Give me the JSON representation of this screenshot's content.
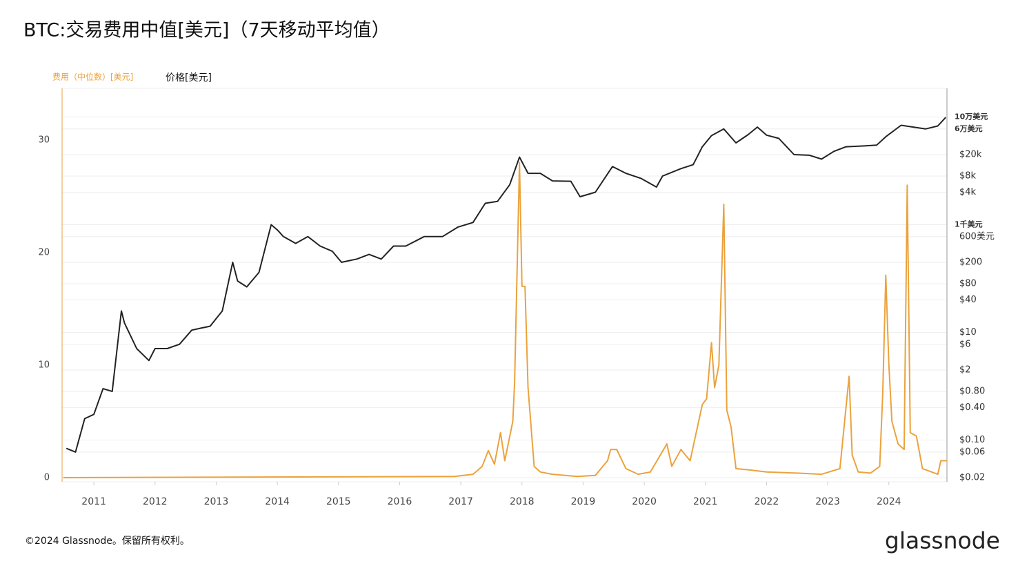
{
  "chart_data": {
    "type": "line",
    "title": "BTC:交易费用中值[美元]（7天移动平均值）",
    "footer": "©2024 Glassnode。保留所有权利。",
    "logo": "glassnode",
    "xlim": [
      2010.48,
      2024.95
    ],
    "xticks": [
      2011,
      2012,
      2013,
      2014,
      2015,
      2016,
      2017,
      2018,
      2019,
      2020,
      2021,
      2022,
      2023,
      2024
    ],
    "ylim": [
      -0.37,
      34.6
    ],
    "yticks": [
      0,
      10,
      20,
      30
    ],
    "y2lim": [
      0.0168,
      340000
    ],
    "y2log": true,
    "y2ticks": [
      {
        "value": 0.02,
        "label": "$0.02"
      },
      {
        "value": 0.06,
        "label": "$0.06"
      },
      {
        "value": 0.1,
        "label": "$0.10"
      },
      {
        "value": 0.4,
        "label": "$0.40"
      },
      {
        "value": 0.8,
        "label": "$0.80"
      },
      {
        "value": 2,
        "label": "$2"
      },
      {
        "value": 6,
        "label": "$6"
      },
      {
        "value": 10,
        "label": "$10"
      },
      {
        "value": 40,
        "label": "$40"
      },
      {
        "value": 80,
        "label": "$80"
      },
      {
        "value": 200,
        "label": "$200"
      },
      {
        "value": 600,
        "label": "600美元"
      },
      {
        "value": 1000,
        "label": "1千美元"
      },
      {
        "value": 4000,
        "label": "$4k"
      },
      {
        "value": 8000,
        "label": "$8k"
      },
      {
        "value": 20000,
        "label": "$20k"
      },
      {
        "value": 60000,
        "label": "6万美元"
      },
      {
        "value": 100000,
        "label": "10万美元"
      }
    ],
    "grid": true,
    "series": [
      {
        "name": "费用（中位数）[美元]",
        "color": "#eba23c",
        "axis": "y",
        "x": [
          2010.5,
          2016.9,
          2017.2,
          2017.35,
          2017.45,
          2017.55,
          2017.65,
          2017.72,
          2017.85,
          2017.88,
          2017.96,
          2018.0,
          2018.05,
          2018.1,
          2018.2,
          2018.3,
          2018.5,
          2018.9,
          2019.2,
          2019.4,
          2019.45,
          2019.55,
          2019.7,
          2019.9,
          2020.1,
          2020.37,
          2020.45,
          2020.6,
          2020.75,
          2020.95,
          2021.02,
          2021.1,
          2021.15,
          2021.22,
          2021.3,
          2021.35,
          2021.42,
          2021.5,
          2021.7,
          2022.0,
          2022.5,
          2022.9,
          2023.2,
          2023.35,
          2023.4,
          2023.5,
          2023.7,
          2023.85,
          2023.9,
          2023.95,
          2024.0,
          2024.05,
          2024.15,
          2024.25,
          2024.3,
          2024.35,
          2024.45,
          2024.55,
          2024.8,
          2024.85,
          2024.95
        ],
        "values": [
          0,
          0.1,
          0.3,
          1,
          2.4,
          1.2,
          4,
          1.5,
          5,
          8.4,
          28,
          17,
          17,
          8,
          1,
          0.5,
          0.3,
          0.1,
          0.2,
          1.5,
          2.5,
          2.5,
          0.8,
          0.3,
          0.5,
          3,
          1,
          2.5,
          1.5,
          6.5,
          7,
          12,
          8,
          10,
          24.3,
          6,
          4.5,
          0.8,
          0.7,
          0.5,
          0.4,
          0.3,
          0.8,
          9,
          2,
          0.5,
          0.4,
          1,
          7.5,
          18,
          10,
          5,
          3,
          2.5,
          26,
          4,
          3.7,
          0.8,
          0.3,
          1.5,
          1.5
        ]
      },
      {
        "name": "价格[美元]",
        "color": "#222222",
        "axis": "y2",
        "x": [
          2010.55,
          2010.7,
          2010.85,
          2011.0,
          2011.15,
          2011.3,
          2011.45,
          2011.5,
          2011.7,
          2011.9,
          2012.0,
          2012.2,
          2012.4,
          2012.6,
          2012.75,
          2012.9,
          2013.1,
          2013.27,
          2013.35,
          2013.5,
          2013.7,
          2013.9,
          2014.0,
          2014.1,
          2014.3,
          2014.5,
          2014.7,
          2014.9,
          2015.05,
          2015.3,
          2015.5,
          2015.7,
          2015.9,
          2016.1,
          2016.4,
          2016.7,
          2016.95,
          2017.2,
          2017.4,
          2017.6,
          2017.8,
          2017.96,
          2018.1,
          2018.3,
          2018.5,
          2018.8,
          2018.95,
          2019.2,
          2019.48,
          2019.7,
          2019.95,
          2020.2,
          2020.3,
          2020.6,
          2020.8,
          2020.95,
          2021.1,
          2021.3,
          2021.5,
          2021.7,
          2021.85,
          2022.0,
          2022.2,
          2022.45,
          2022.7,
          2022.9,
          2023.1,
          2023.3,
          2023.6,
          2023.8,
          2023.95,
          2024.2,
          2024.4,
          2024.6,
          2024.8,
          2024.93
        ],
        "values": [
          0.07,
          0.06,
          0.25,
          0.3,
          0.9,
          0.8,
          25,
          15,
          5,
          3,
          5,
          5,
          6,
          11,
          12,
          13,
          25,
          200,
          90,
          70,
          130,
          1000,
          800,
          600,
          450,
          600,
          400,
          320,
          200,
          230,
          280,
          230,
          400,
          400,
          600,
          600,
          900,
          1100,
          2500,
          2700,
          5500,
          18000,
          9000,
          9000,
          6500,
          6400,
          3300,
          4000,
          12000,
          9000,
          7200,
          5000,
          8000,
          11000,
          13000,
          28000,
          45000,
          60000,
          33000,
          47000,
          65000,
          46000,
          40000,
          20000,
          19500,
          16500,
          23000,
          28000,
          29000,
          30000,
          43000,
          70000,
          65000,
          60000,
          68000,
          98000
        ]
      }
    ]
  }
}
